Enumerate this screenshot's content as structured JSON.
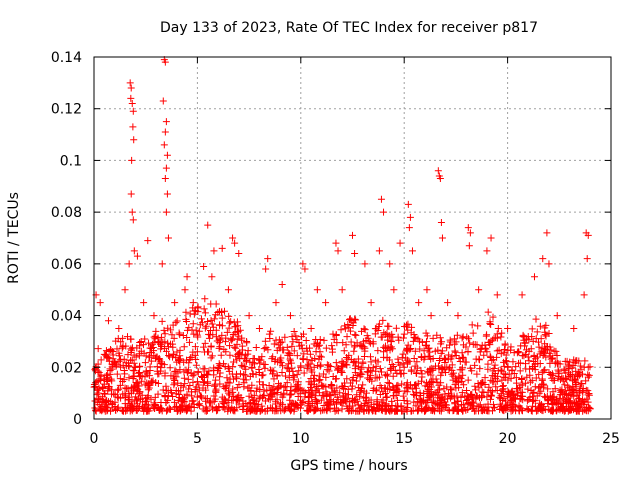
{
  "chart_data": {
    "type": "scatter",
    "title": "Day 133 of 2023, Rate Of TEC Index for receiver p817",
    "xlabel": "GPS time / hours",
    "ylabel": "ROTI / TECUs",
    "xlim": [
      0,
      25
    ],
    "ylim": [
      0,
      0.14
    ],
    "x_ticks": [
      "0",
      "5",
      "10",
      "15",
      "20",
      "25"
    ],
    "y_ticks": [
      "0",
      "0.02",
      "0.04",
      "0.06",
      "0.08",
      "0.1",
      "0.12",
      "0.14"
    ],
    "grid": true,
    "marker": "+",
    "color": "#ff0000",
    "series": [
      {
        "points": [
          [
            1.75,
            0.13
          ],
          [
            1.8,
            0.128
          ],
          [
            1.78,
            0.124
          ],
          [
            1.85,
            0.122
          ],
          [
            1.9,
            0.119
          ],
          [
            1.88,
            0.113
          ],
          [
            1.92,
            0.108
          ],
          [
            1.82,
            0.1
          ],
          [
            1.8,
            0.087
          ],
          [
            1.85,
            0.08
          ],
          [
            1.9,
            0.077
          ],
          [
            1.95,
            0.065
          ],
          [
            2.1,
            0.063
          ],
          [
            1.7,
            0.06
          ],
          [
            3.4,
            0.139
          ],
          [
            3.45,
            0.138
          ],
          [
            3.35,
            0.123
          ],
          [
            3.5,
            0.115
          ],
          [
            3.45,
            0.111
          ],
          [
            3.4,
            0.106
          ],
          [
            3.55,
            0.102
          ],
          [
            3.5,
            0.097
          ],
          [
            3.45,
            0.093
          ],
          [
            3.55,
            0.087
          ],
          [
            3.5,
            0.08
          ],
          [
            3.6,
            0.07
          ],
          [
            3.3,
            0.06
          ],
          [
            2.6,
            0.069
          ],
          [
            4.5,
            0.055
          ],
          [
            5.3,
            0.059
          ],
          [
            5.5,
            0.075
          ],
          [
            5.8,
            0.065
          ],
          [
            6.2,
            0.066
          ],
          [
            6.7,
            0.07
          ],
          [
            6.8,
            0.068
          ],
          [
            7.0,
            0.064
          ],
          [
            8.4,
            0.062
          ],
          [
            8.3,
            0.058
          ],
          [
            9.1,
            0.052
          ],
          [
            10.1,
            0.06
          ],
          [
            10.2,
            0.058
          ],
          [
            10.8,
            0.05
          ],
          [
            11.7,
            0.068
          ],
          [
            11.8,
            0.065
          ],
          [
            12.5,
            0.071
          ],
          [
            12.6,
            0.064
          ],
          [
            13.1,
            0.06
          ],
          [
            13.9,
            0.085
          ],
          [
            14.0,
            0.08
          ],
          [
            13.8,
            0.065
          ],
          [
            14.3,
            0.06
          ],
          [
            14.8,
            0.068
          ],
          [
            15.2,
            0.083
          ],
          [
            15.3,
            0.078
          ],
          [
            15.25,
            0.074
          ],
          [
            15.4,
            0.065
          ],
          [
            16.1,
            0.05
          ],
          [
            16.65,
            0.096
          ],
          [
            16.7,
            0.094
          ],
          [
            16.75,
            0.093
          ],
          [
            16.8,
            0.076
          ],
          [
            16.85,
            0.07
          ],
          [
            18.1,
            0.074
          ],
          [
            18.2,
            0.072
          ],
          [
            18.15,
            0.067
          ],
          [
            19.0,
            0.065
          ],
          [
            19.2,
            0.07
          ],
          [
            21.7,
            0.062
          ],
          [
            21.9,
            0.072
          ],
          [
            22.0,
            0.06
          ],
          [
            23.8,
            0.072
          ],
          [
            23.9,
            0.071
          ],
          [
            23.85,
            0.062
          ],
          [
            0.1,
            0.048
          ],
          [
            0.3,
            0.045
          ],
          [
            0.7,
            0.038
          ],
          [
            1.2,
            0.035
          ],
          [
            1.5,
            0.05
          ],
          [
            2.4,
            0.045
          ],
          [
            2.9,
            0.04
          ],
          [
            3.9,
            0.045
          ],
          [
            4.4,
            0.05
          ],
          [
            4.8,
            0.045
          ],
          [
            5.7,
            0.055
          ],
          [
            6.5,
            0.05
          ],
          [
            7.5,
            0.04
          ],
          [
            8.0,
            0.035
          ],
          [
            8.8,
            0.045
          ],
          [
            9.5,
            0.04
          ],
          [
            10.5,
            0.035
          ],
          [
            11.2,
            0.045
          ],
          [
            12.0,
            0.05
          ],
          [
            13.4,
            0.045
          ],
          [
            14.5,
            0.05
          ],
          [
            15.7,
            0.045
          ],
          [
            16.3,
            0.04
          ],
          [
            17.1,
            0.045
          ],
          [
            17.6,
            0.04
          ],
          [
            18.6,
            0.05
          ],
          [
            19.5,
            0.048
          ],
          [
            20.0,
            0.035
          ],
          [
            20.7,
            0.048
          ],
          [
            21.3,
            0.055
          ],
          [
            22.4,
            0.04
          ],
          [
            23.2,
            0.035
          ],
          [
            23.7,
            0.048
          ],
          [
            0.5,
            0.025
          ],
          [
            1.0,
            0.022
          ],
          [
            2.0,
            0.02
          ],
          [
            3.0,
            0.024
          ],
          [
            4.0,
            0.022
          ],
          [
            5.0,
            0.026
          ],
          [
            6.0,
            0.02
          ],
          [
            7.0,
            0.025
          ],
          [
            8.0,
            0.018
          ],
          [
            9.0,
            0.022
          ],
          [
            10.0,
            0.02
          ],
          [
            11.0,
            0.024
          ],
          [
            12.0,
            0.018
          ],
          [
            13.0,
            0.022
          ],
          [
            14.0,
            0.026
          ],
          [
            15.0,
            0.02
          ],
          [
            16.0,
            0.024
          ],
          [
            17.0,
            0.018
          ],
          [
            18.0,
            0.022
          ],
          [
            19.0,
            0.026
          ],
          [
            20.0,
            0.02
          ],
          [
            21.0,
            0.024
          ],
          [
            22.0,
            0.018
          ],
          [
            23.0,
            0.022
          ],
          [
            23.9,
            0.02
          ],
          [
            0.2,
            0.01
          ],
          [
            1.5,
            0.012
          ],
          [
            2.5,
            0.008
          ],
          [
            3.5,
            0.011
          ],
          [
            4.5,
            0.009
          ],
          [
            5.5,
            0.013
          ],
          [
            6.5,
            0.01
          ],
          [
            7.5,
            0.012
          ],
          [
            8.5,
            0.009
          ],
          [
            9.5,
            0.011
          ],
          [
            10.5,
            0.01
          ],
          [
            11.5,
            0.012
          ],
          [
            12.5,
            0.008
          ],
          [
            13.5,
            0.011
          ],
          [
            14.5,
            0.009
          ],
          [
            15.5,
            0.013
          ],
          [
            16.5,
            0.01
          ],
          [
            17.5,
            0.012
          ],
          [
            18.5,
            0.009
          ],
          [
            19.5,
            0.011
          ],
          [
            20.5,
            0.01
          ],
          [
            21.5,
            0.012
          ],
          [
            22.5,
            0.008
          ],
          [
            23.5,
            0.011
          ]
        ],
        "dense_band": {
          "x_range": [
            0,
            24
          ],
          "y_floor": 0.003,
          "envelope": [
            [
              0,
              0.035
            ],
            [
              0.5,
              0.03
            ],
            [
              1,
              0.03
            ],
            [
              1.5,
              0.035
            ],
            [
              2,
              0.03
            ],
            [
              2.5,
              0.032
            ],
            [
              3,
              0.035
            ],
            [
              3.5,
              0.04
            ],
            [
              4,
              0.038
            ],
            [
              4.5,
              0.042
            ],
            [
              5,
              0.045
            ],
            [
              5.5,
              0.048
            ],
            [
              6,
              0.045
            ],
            [
              6.5,
              0.04
            ],
            [
              7,
              0.038
            ],
            [
              7.5,
              0.03
            ],
            [
              8,
              0.028
            ],
            [
              8.5,
              0.035
            ],
            [
              9,
              0.032
            ],
            [
              9.5,
              0.035
            ],
            [
              10,
              0.035
            ],
            [
              10.5,
              0.03
            ],
            [
              11,
              0.032
            ],
            [
              11.5,
              0.035
            ],
            [
              12,
              0.035
            ],
            [
              12.5,
              0.04
            ],
            [
              13,
              0.035
            ],
            [
              13.5,
              0.035
            ],
            [
              14,
              0.04
            ],
            [
              14.5,
              0.035
            ],
            [
              15,
              0.038
            ],
            [
              15.5,
              0.035
            ],
            [
              16,
              0.033
            ],
            [
              16.5,
              0.035
            ],
            [
              17,
              0.03
            ],
            [
              17.5,
              0.032
            ],
            [
              18,
              0.035
            ],
            [
              18.5,
              0.038
            ],
            [
              19,
              0.042
            ],
            [
              19.5,
              0.038
            ],
            [
              20,
              0.028
            ],
            [
              20.5,
              0.03
            ],
            [
              21,
              0.035
            ],
            [
              21.5,
              0.04
            ],
            [
              22,
              0.035
            ],
            [
              22.5,
              0.025
            ],
            [
              23,
              0.022
            ],
            [
              23.5,
              0.025
            ],
            [
              24,
              0.022
            ]
          ]
        }
      }
    ]
  }
}
